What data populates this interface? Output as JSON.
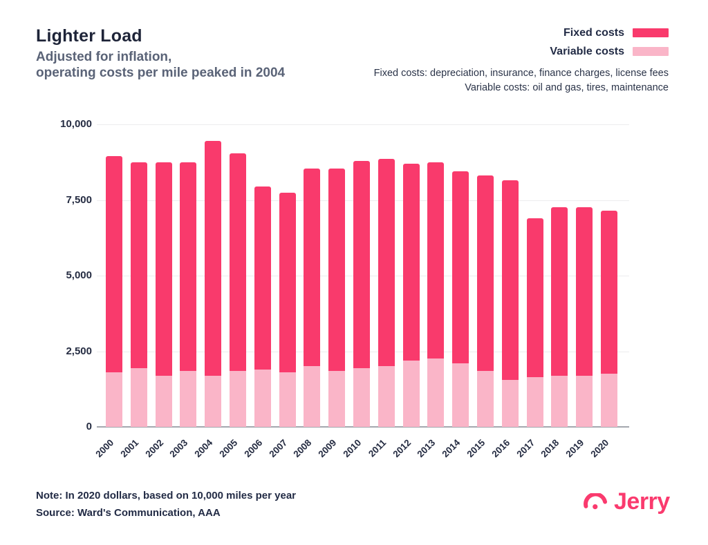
{
  "header": {
    "title": "Lighter Load",
    "subtitle_line1": "Adjusted for inflation,",
    "subtitle_line2": "operating costs per mile peaked in 2004"
  },
  "legend": {
    "items": [
      {
        "label": "Fixed costs",
        "color": "#F93A6C"
      },
      {
        "label": "Variable costs",
        "color": "#FAB5C8"
      }
    ],
    "descriptions": [
      "Fixed costs: depreciation, insurance, finance charges, license fees",
      "Variable costs: oil and gas, tires, maintenance"
    ]
  },
  "chart_data": {
    "type": "bar",
    "stacked": true,
    "categories": [
      "2000",
      "2001",
      "2002",
      "2003",
      "2004",
      "2005",
      "2006",
      "2007",
      "2008",
      "2009",
      "2010",
      "2011",
      "2012",
      "2013",
      "2014",
      "2015",
      "2016",
      "2017",
      "2018",
      "2019",
      "2020"
    ],
    "series": [
      {
        "name": "Fixed costs",
        "color": "#F93A6C",
        "values": [
          7150,
          6800,
          7050,
          6900,
          7750,
          7200,
          6050,
          5950,
          6550,
          6700,
          6850,
          6850,
          6500,
          6500,
          6350,
          6450,
          6600,
          5250,
          5550,
          5550,
          5400
        ]
      },
      {
        "name": "Variable costs",
        "color": "#FAB5C8",
        "values": [
          1800,
          1950,
          1700,
          1850,
          1700,
          1850,
          1900,
          1800,
          2000,
          1850,
          1950,
          2000,
          2200,
          2250,
          2100,
          1850,
          1550,
          1650,
          1700,
          1700,
          1750
        ]
      }
    ],
    "totals": [
      8950,
      8750,
      8750,
      8750,
      9450,
      9050,
      7950,
      7750,
      8550,
      8550,
      8800,
      8850,
      8700,
      8750,
      8450,
      8300,
      8150,
      6900,
      7250,
      7250,
      7150
    ],
    "ylim": [
      0,
      10000
    ],
    "yticks": [
      0,
      2500,
      5000,
      7500,
      10000
    ],
    "grid": true,
    "legend_position": "top-right"
  },
  "footer": {
    "note": "Note: In 2020 dollars, based on 10,000 miles per year",
    "source": "Source: Ward's Communication, AAA",
    "brand": "Jerry"
  },
  "colors": {
    "fixed": "#F93A6C",
    "variable": "#FAB5C8",
    "brand": "#FA3A6E",
    "title": "#1E2438",
    "subtitle": "#5A6377",
    "grid": "#ECECEE",
    "axis_line": "#A3A7AE"
  }
}
